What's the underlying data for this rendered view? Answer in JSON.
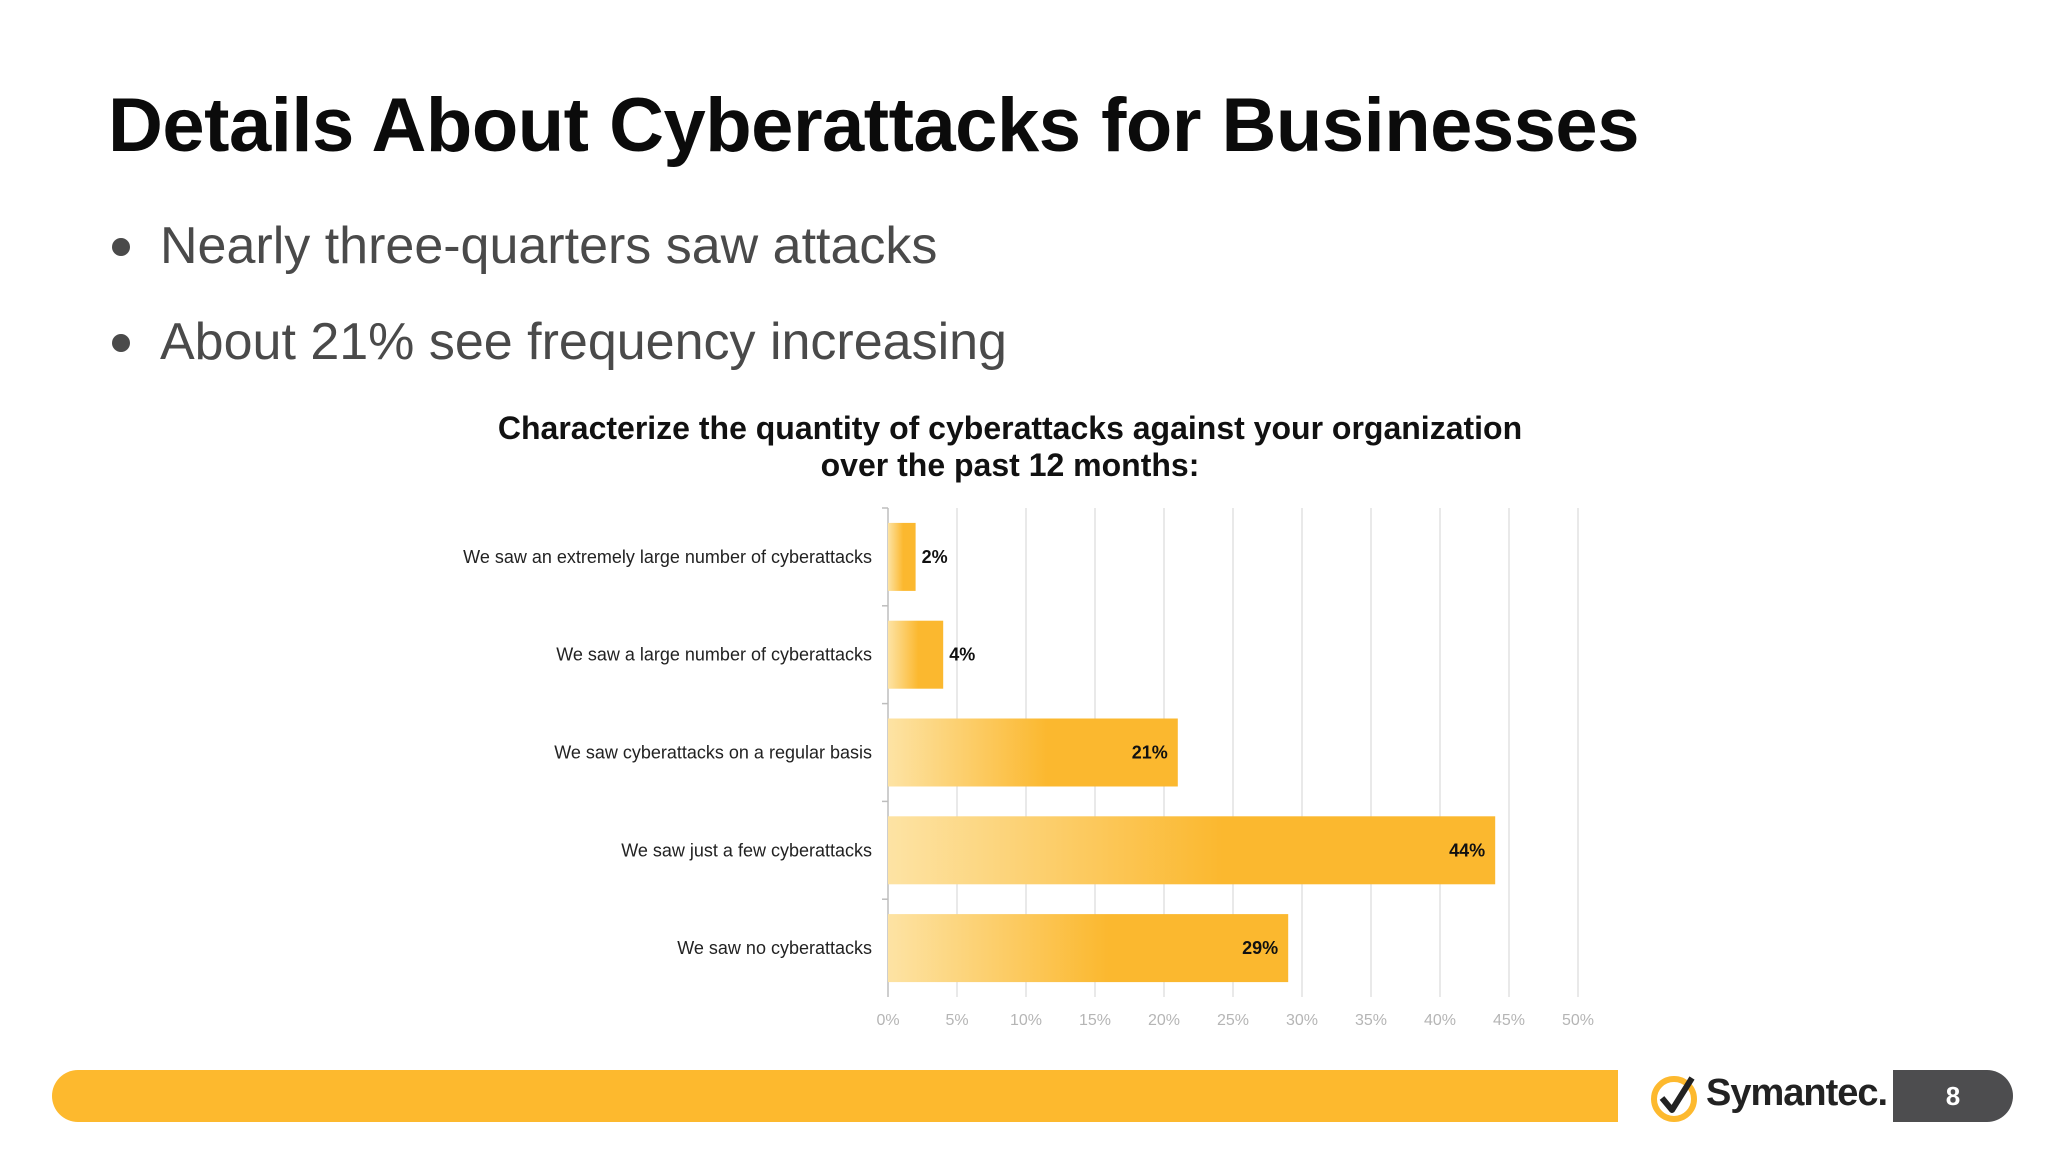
{
  "slide": {
    "title": "Details About Cyberattacks for Businesses",
    "bullets": [
      "Nearly three-quarters saw attacks",
      "About 21% see frequency increasing"
    ],
    "page_number": "8",
    "logo_text": "Symantec."
  },
  "colors": {
    "accent": "#fdb92e",
    "bar_light": "#fde3a4",
    "bar_dark": "#fbb82f",
    "page_tab": "#4d4d4f"
  },
  "chart_data": {
    "type": "bar",
    "orientation": "horizontal",
    "title": "Characterize the quantity of cyberattacks against your organization over the past 12 months:",
    "categories": [
      "We saw an extremely large number of cyberattacks",
      "We saw a large number of cyberattacks",
      "We saw cyberattacks on a regular basis",
      "We saw just a few cyberattacks",
      "We saw no cyberattacks"
    ],
    "values": [
      2,
      4,
      21,
      44,
      29
    ],
    "value_labels": [
      "2%",
      "4%",
      "21%",
      "44%",
      "29%"
    ],
    "xlim": [
      0,
      50
    ],
    "x_ticks": [
      "0%",
      "5%",
      "10%",
      "15%",
      "20%",
      "25%",
      "30%",
      "35%",
      "40%",
      "45%",
      "50%"
    ],
    "xlabel": "",
    "ylabel": "",
    "grid": "vertical",
    "legend": "none"
  }
}
